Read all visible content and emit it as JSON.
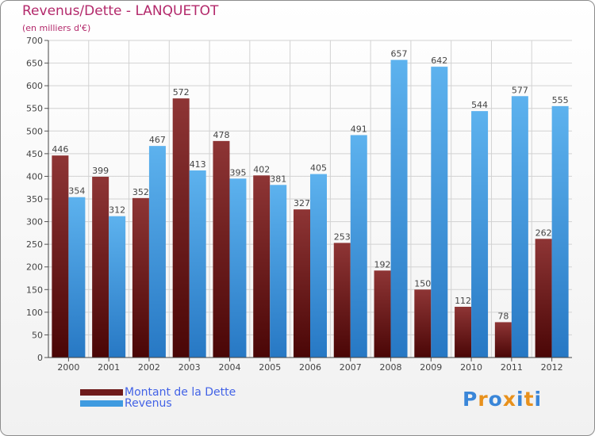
{
  "header": {
    "title": "Revenus/Dette - LANQUETOT",
    "subtitle": "(en milliers d'€)"
  },
  "chart_data": {
    "type": "bar",
    "categories": [
      "2000",
      "2001",
      "2002",
      "2003",
      "2004",
      "2005",
      "2006",
      "2007",
      "2008",
      "2009",
      "2010",
      "2011",
      "2012"
    ],
    "series": [
      {
        "name": "Montant de la Dette",
        "color": "#6e1a1a",
        "values": [
          446,
          399,
          352,
          572,
          478,
          402,
          327,
          253,
          192,
          150,
          112,
          78,
          262
        ]
      },
      {
        "name": "Revenus",
        "color": "#3f9be0",
        "values": [
          354,
          312,
          467,
          413,
          395,
          381,
          405,
          491,
          657,
          642,
          544,
          577,
          555
        ]
      }
    ],
    "ylim": [
      0,
      700
    ],
    "ytick_step": 50,
    "grid": true,
    "xlabel": "",
    "ylabel": ""
  },
  "legend": {
    "items": [
      {
        "label": "Montant de la Dette",
        "color": "#6e1a1a"
      },
      {
        "label": "Revenus",
        "color": "#3f9be0"
      }
    ]
  },
  "logo": {
    "text": "Proxiti",
    "colors": [
      "#3a86d8",
      "#e8911c",
      "#3a86d8",
      "#e8911c",
      "#3a86d8",
      "#e8911c",
      "#3a86d8"
    ]
  }
}
